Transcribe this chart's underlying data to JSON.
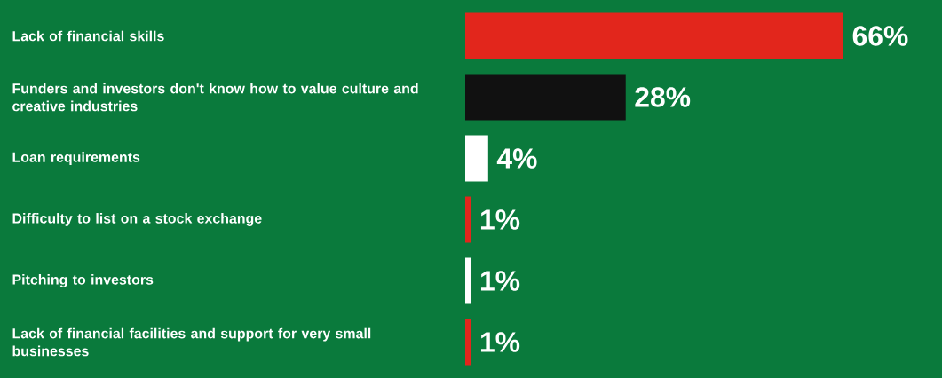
{
  "chart_data": {
    "type": "bar",
    "orientation": "horizontal",
    "categories": [
      "Lack of financial skills",
      "Funders and investors don't know how to value culture and creative industries",
      "Loan requirements",
      "Difficulty to list on a stock exchange",
      "Pitching to investors",
      "Lack of financial facilities and support for very small businesses"
    ],
    "values": [
      66,
      28,
      4,
      1,
      1,
      1
    ],
    "colors": [
      "#e2261c",
      "#111111",
      "#ffffff",
      "#e2261c",
      "#ffffff",
      "#e2261c"
    ],
    "value_labels": [
      "66%",
      "28%",
      "4%",
      "1%",
      "1%",
      "1%"
    ]
  }
}
